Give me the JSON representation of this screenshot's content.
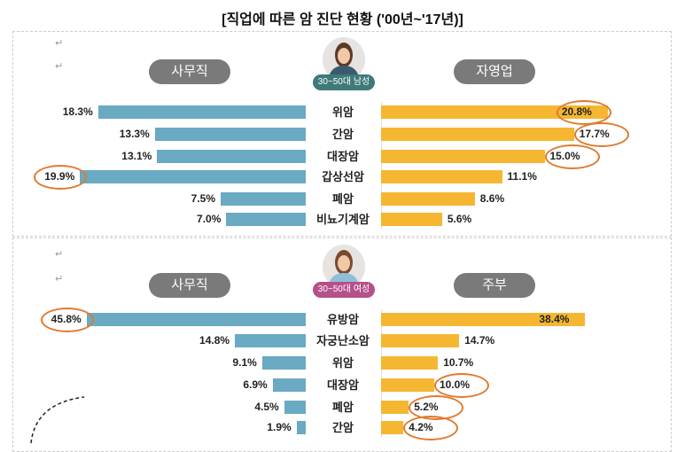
{
  "title": "[직업에 따른 암 진단 현황 ('00년~'17년)]",
  "colors": {
    "left": "#6aaac2",
    "right": "#f5b731",
    "highlight": "#e07a2e",
    "male_tag": "#3e7a78",
    "female_tag": "#b5508a"
  },
  "chart_data": [
    {
      "type": "bar",
      "title": "30~50대 남성",
      "left_label": "사무직",
      "right_label": "자영업",
      "categories": [
        "위암",
        "간암",
        "대장암",
        "갑상선암",
        "폐암",
        "비뇨기계암"
      ],
      "series": [
        {
          "name": "사무직",
          "values": [
            18.3,
            13.3,
            13.1,
            19.9,
            7.5,
            7.0
          ],
          "labels": [
            "18.3%",
            "13.3%",
            "13.1%",
            "19.9%",
            "7.5%",
            "7.0%"
          ],
          "highlighted": [
            false,
            false,
            false,
            true,
            false,
            false
          ]
        },
        {
          "name": "자영업",
          "values": [
            20.8,
            17.7,
            15.0,
            11.1,
            8.6,
            5.6
          ],
          "labels": [
            "20.8%",
            "17.7%",
            "15.0%",
            "11.1%",
            "8.6%",
            "5.6%"
          ],
          "highlighted": [
            true,
            true,
            true,
            false,
            false,
            false
          ]
        }
      ]
    },
    {
      "type": "bar",
      "title": "30~50대 여성",
      "left_label": "사무직",
      "right_label": "주부",
      "categories": [
        "유방암",
        "자궁난소암",
        "위암",
        "대장암",
        "폐암",
        "간암"
      ],
      "series": [
        {
          "name": "사무직",
          "values": [
            45.8,
            14.8,
            9.1,
            6.9,
            4.5,
            1.9
          ],
          "labels": [
            "45.8%",
            "14.8%",
            "9.1%",
            "6.9%",
            "4.5%",
            "1.9%"
          ],
          "highlighted": [
            true,
            false,
            false,
            false,
            false,
            false
          ]
        },
        {
          "name": "주부",
          "values": [
            38.4,
            14.7,
            10.7,
            10.0,
            5.2,
            4.2
          ],
          "labels": [
            "38.4%",
            "14.7%",
            "10.7%",
            "10.0%",
            "5.2%",
            "4.2%"
          ],
          "highlighted": [
            false,
            false,
            false,
            true,
            true,
            true
          ]
        }
      ]
    }
  ]
}
